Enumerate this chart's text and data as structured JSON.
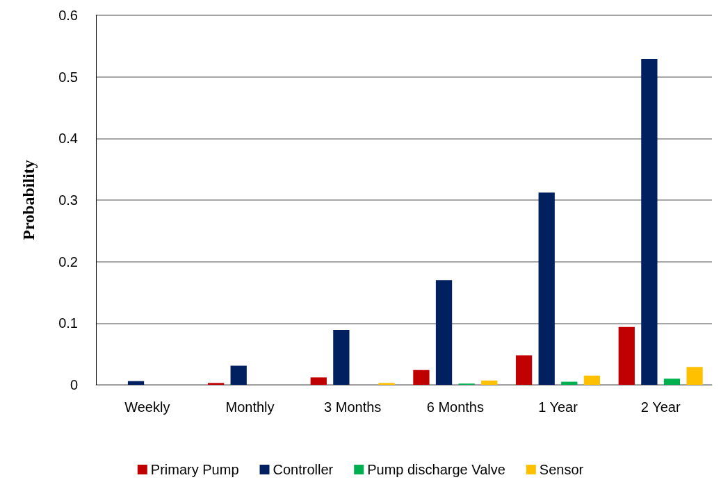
{
  "chart_data": {
    "type": "bar",
    "ylabel": "Probability",
    "categories": [
      "Weekly",
      "Monthly",
      "3 Months",
      "6 Months",
      "1 Year",
      "2 Year"
    ],
    "series": [
      {
        "name": "Primary Pump",
        "color": "#c00000",
        "values": [
          0,
          0.003,
          0.012,
          0.024,
          0.048,
          0.094
        ]
      },
      {
        "name": "Controller",
        "color": "#002060",
        "values": [
          0.006,
          0.031,
          0.089,
          0.17,
          0.312,
          0.529
        ]
      },
      {
        "name": "Pump discharge Valve",
        "color": "#00b050",
        "values": [
          0,
          0,
          0,
          0.002,
          0.005,
          0.01
        ]
      },
      {
        "name": "Sensor",
        "color": "#ffc000",
        "values": [
          0,
          0,
          0.003,
          0.007,
          0.015,
          0.029
        ]
      }
    ],
    "ylim": [
      0,
      0.6
    ],
    "yticks": [
      0,
      0.1,
      0.2,
      0.3,
      0.4,
      0.5,
      0.6
    ],
    "grid": "y",
    "legend": "bottom"
  }
}
